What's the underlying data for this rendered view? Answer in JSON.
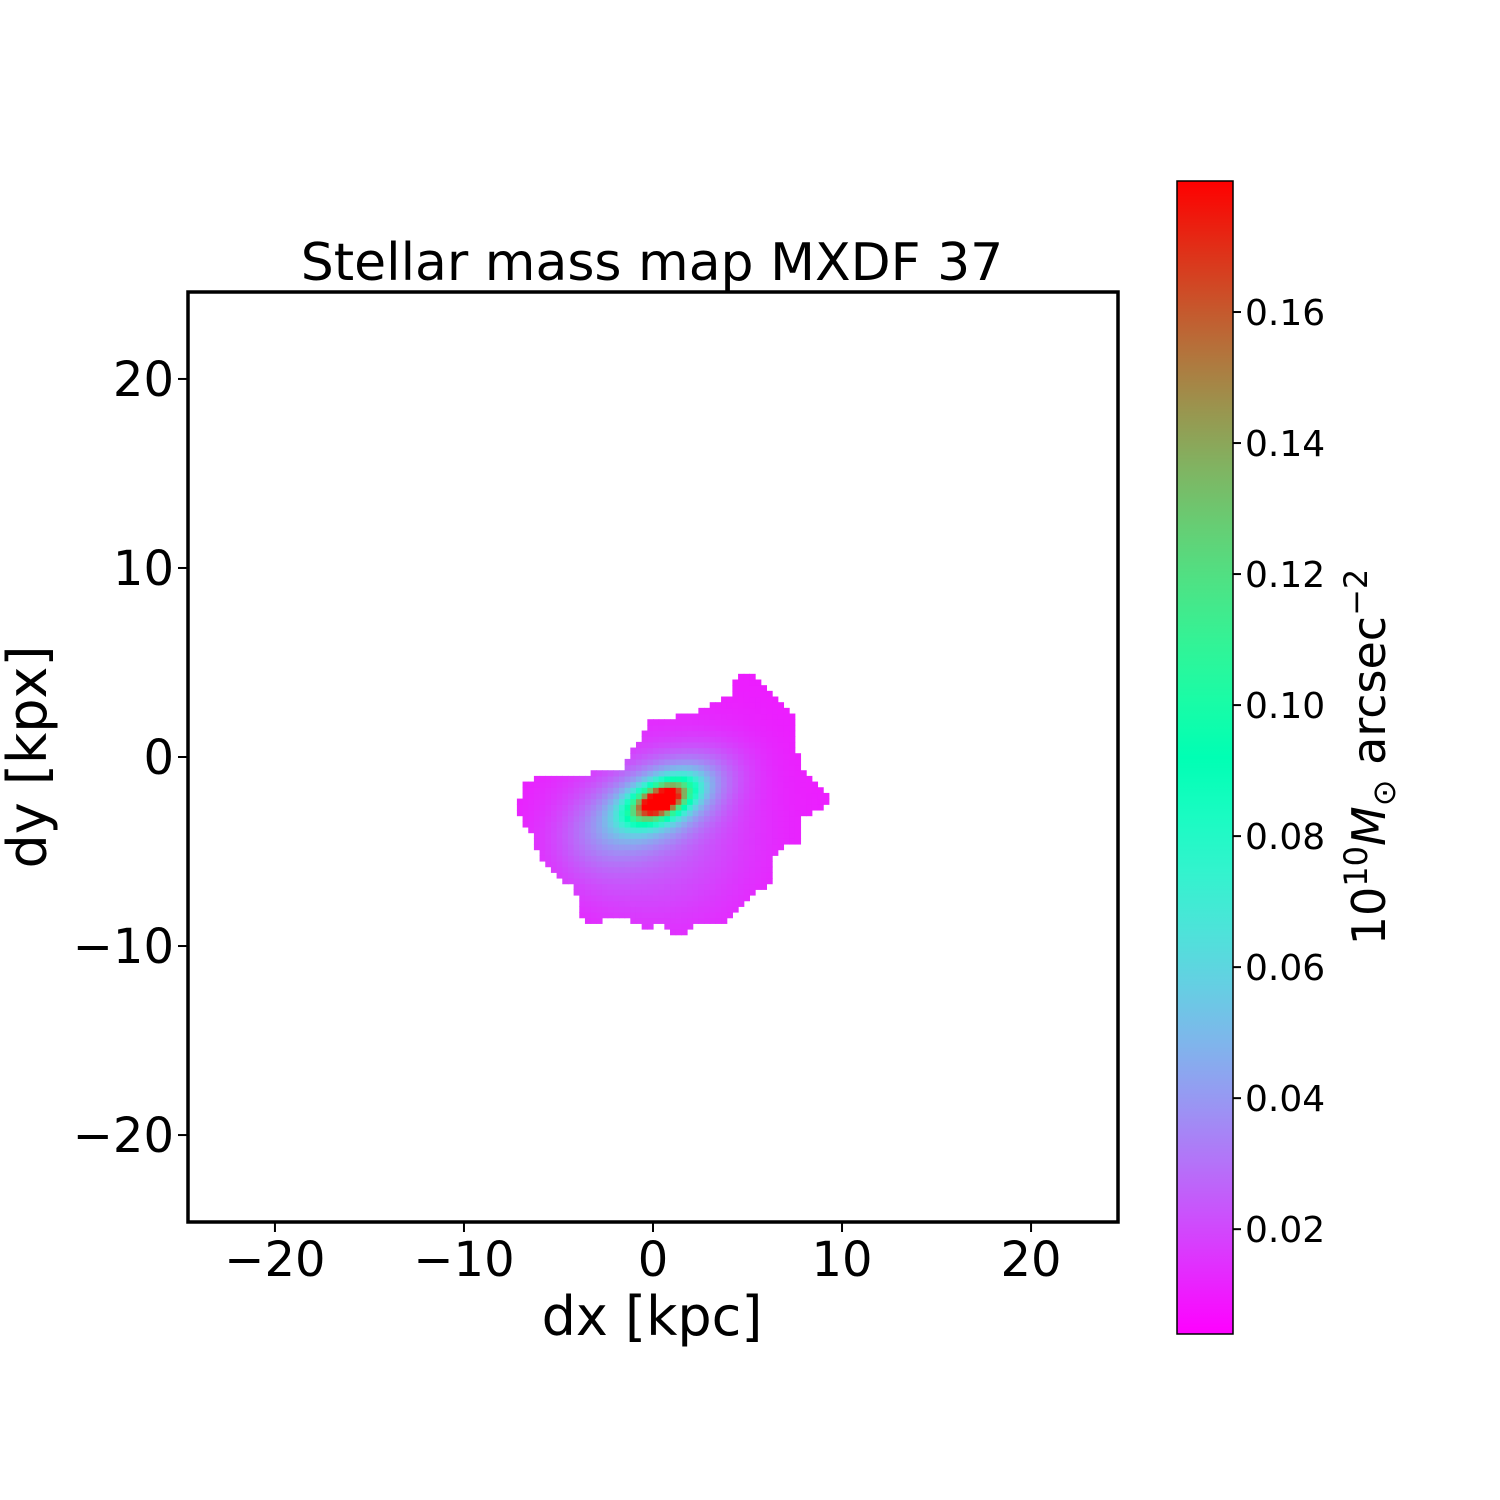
{
  "chart_data": {
    "type": "heatmap",
    "title": "Stellar mass map MXDF 37",
    "xlabel": "dx [kpc]",
    "ylabel": "dy [kpx]",
    "xlim": [
      -24.6,
      24.6
    ],
    "ylim": [
      -24.6,
      24.6
    ],
    "xticks": [
      -20,
      -10,
      0,
      10,
      20
    ],
    "yticks": [
      -20,
      -10,
      0,
      10,
      20
    ],
    "xtick_labels": [
      "−20",
      "−10",
      "0",
      "10",
      "20"
    ],
    "ytick_labels": [
      "−20",
      "−10",
      "0",
      "10",
      "20"
    ],
    "colormap": "rainbow",
    "colorbar": {
      "label": "10^10 M_⊙ arcsec^−2",
      "label_base": "10",
      "label_exp": "10",
      "label_sym": "M",
      "label_sub": "⊙",
      "label_unit": "arcsec",
      "label_unit_exp": "−2",
      "range": [
        0.004,
        0.18
      ],
      "ticks": [
        0.02,
        0.04,
        0.06,
        0.08,
        0.1,
        0.12,
        0.14,
        0.16
      ],
      "tick_labels": [
        "0.02",
        "0.04",
        "0.06",
        "0.08",
        "0.10",
        "0.12",
        "0.14",
        "0.16"
      ]
    },
    "peak": {
      "x": 0.4,
      "y": -2.3,
      "value": 0.18
    },
    "background_value": 0.01,
    "outline": [
      [
        -6.9,
        -1.2
      ],
      [
        -1.7,
        -0.7
      ],
      [
        0,
        2.1
      ],
      [
        0.95,
        2.1
      ],
      [
        2.5,
        2.5
      ],
      [
        4.1,
        3.3
      ],
      [
        4.4,
        4.4
      ],
      [
        5.1,
        4.4
      ],
      [
        6.2,
        3.5
      ],
      [
        7.5,
        2.0
      ],
      [
        7.5,
        0.9
      ],
      [
        7.8,
        -0.4
      ],
      [
        8.9,
        -1.7
      ],
      [
        9.5,
        -2.3
      ],
      [
        8.9,
        -2.8
      ],
      [
        7.8,
        -3.1
      ],
      [
        7.8,
        -4.4
      ],
      [
        6.5,
        -4.9
      ],
      [
        6.3,
        -6.5
      ],
      [
        4.7,
        -7.8
      ],
      [
        3.6,
        -8.9
      ],
      [
        2.0,
        -8.9
      ],
      [
        1.7,
        -9.4
      ],
      [
        1.2,
        -9.4
      ],
      [
        0.4,
        -8.9
      ],
      [
        -0.6,
        -9.0
      ],
      [
        -1.2,
        -8.6
      ],
      [
        -2.5,
        -8.6
      ],
      [
        -3.0,
        -9.0
      ],
      [
        -3.9,
        -8.4
      ],
      [
        -4.1,
        -7.0
      ],
      [
        -4.9,
        -6.5
      ],
      [
        -5.9,
        -5.4
      ],
      [
        -6.5,
        -3.9
      ],
      [
        -7.1,
        -3.1
      ],
      [
        -7.1,
        -2.3
      ],
      [
        -6.8,
        -2.0
      ]
    ]
  }
}
